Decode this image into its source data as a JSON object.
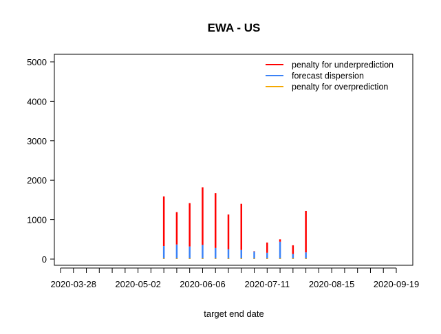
{
  "chart_data": {
    "type": "bar",
    "title": "EWA - US",
    "xlabel": "target end date",
    "ylabel": "",
    "ylim": [
      -170,
      5200
    ],
    "yticks": [
      0,
      1000,
      2000,
      3000,
      4000,
      5000
    ],
    "xlim": [
      "2020-03-21",
      "2020-09-19"
    ],
    "xtick_labels": [
      "2020-03-28",
      "2020-05-02",
      "2020-06-06",
      "2020-07-11",
      "2020-08-15",
      "2020-09-19"
    ],
    "minor_tick_step_days": 7,
    "legend_position": "top-right",
    "grid": false,
    "stacked": true,
    "series": [
      {
        "name": "penalty for underprediction",
        "color": "#ff0000"
      },
      {
        "name": "forecast dispersion",
        "color": "#3b82f6"
      },
      {
        "name": "penalty for overprediction",
        "color": "#f5a800"
      }
    ],
    "dates": [
      "2020-05-16",
      "2020-05-23",
      "2020-05-30",
      "2020-06-06",
      "2020-06-13",
      "2020-06-20",
      "2020-06-27",
      "2020-07-04",
      "2020-07-11",
      "2020-07-18",
      "2020-07-25",
      "2020-08-01"
    ],
    "overprediction": [
      20,
      20,
      20,
      20,
      20,
      20,
      20,
      20,
      20,
      20,
      20,
      20
    ],
    "dispersion": [
      330,
      370,
      320,
      360,
      280,
      250,
      230,
      190,
      160,
      440,
      130,
      170
    ],
    "underprediction": [
      1260,
      820,
      1100,
      1460,
      1390,
      880,
      1170,
      10,
      260,
      60,
      220,
      1050
    ]
  }
}
